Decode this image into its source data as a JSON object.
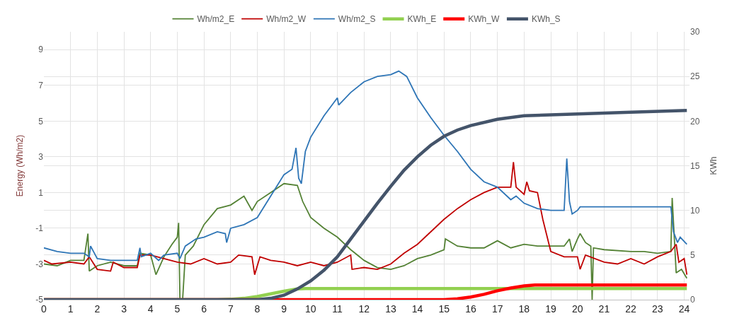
{
  "chart_data": {
    "type": "line",
    "ylabel": "Energy (Wh/m2)",
    "y2label": "KWh",
    "xlim": [
      0,
      24.2
    ],
    "xticks": [
      0,
      1,
      2,
      3,
      4,
      5,
      6,
      7,
      8,
      9,
      10,
      11,
      12,
      13,
      14,
      15,
      16,
      17,
      18,
      19,
      20,
      21,
      22,
      23,
      24
    ],
    "ylim": [
      -5,
      10
    ],
    "yticks": [
      -5,
      -3,
      -1,
      1,
      3,
      5,
      7,
      9
    ],
    "y2lim": [
      0,
      30
    ],
    "y2ticks": [
      0,
      5,
      10,
      15,
      20,
      25,
      30
    ],
    "grid": true,
    "legend": "top",
    "marker": "none",
    "line_style": "solid",
    "series": [
      {
        "name": "Wh/m2_E",
        "color": "#548235",
        "x": [
          0,
          0.5,
          1,
          1.5,
          1.65,
          1.7,
          2,
          2.5,
          3,
          3.5,
          3.6,
          4,
          4.2,
          4.5,
          4.8,
          5,
          5.05,
          5.1,
          5.2,
          5.3,
          5.6,
          6,
          6.5,
          7,
          7.5,
          7.8,
          8,
          8.5,
          9,
          9.5,
          9.7,
          10,
          10.5,
          11,
          11.5,
          12,
          12.5,
          13,
          13.5,
          14,
          14.5,
          15,
          15.05,
          15.5,
          16,
          16.5,
          17,
          17.5,
          18,
          18.5,
          19,
          19.5,
          19.7,
          19.8,
          20,
          20.1,
          20.3,
          20.5,
          20.55,
          20.6,
          21,
          22,
          22.5,
          23,
          23.5,
          23.55,
          23.7,
          23.9,
          24.1
        ],
        "values": [
          -3.0,
          -3.1,
          -2.8,
          -2.8,
          -1.3,
          -3.4,
          -3.1,
          -2.9,
          -3.1,
          -3.1,
          -2.4,
          -2.5,
          -3.6,
          -2.6,
          -1.9,
          -1.5,
          -0.7,
          -5.0,
          -5.0,
          -2.5,
          -2.0,
          -0.8,
          0.1,
          0.3,
          0.8,
          0.0,
          0.5,
          1.0,
          1.5,
          1.4,
          0.5,
          -0.4,
          -1.0,
          -1.5,
          -2.2,
          -2.8,
          -3.2,
          -3.3,
          -3.1,
          -2.7,
          -2.5,
          -2.2,
          -1.6,
          -2.0,
          -2.1,
          -2.1,
          -1.7,
          -2.1,
          -1.9,
          -2.0,
          -2.0,
          -2.0,
          -1.6,
          -2.3,
          -1.6,
          -1.3,
          -1.8,
          -2.0,
          -5.0,
          -2.1,
          -2.2,
          -2.3,
          -2.3,
          -2.4,
          -2.3,
          0.7,
          -3.5,
          -3.3,
          -3.8
        ]
      },
      {
        "name": "Wh/m2_W",
        "color": "#c00000",
        "x": [
          0,
          0.3,
          1,
          1.5,
          1.7,
          2,
          2.5,
          2.6,
          3,
          3.5,
          3.6,
          4,
          4.5,
          5,
          5.5,
          6,
          6.5,
          7,
          7.3,
          7.8,
          7.9,
          8.1,
          8.5,
          9,
          9.5,
          10,
          10.5,
          11,
          11.5,
          11.55,
          12,
          12.5,
          13,
          13.5,
          14,
          14.5,
          15,
          15.5,
          16,
          16.5,
          17,
          17.5,
          17.6,
          17.7,
          18,
          18.1,
          18.2,
          18.5,
          18.7,
          19,
          19.5,
          20,
          20.1,
          20.3,
          21,
          21.5,
          22,
          22.5,
          23,
          23.5,
          23.7,
          23.8,
          24,
          24.1
        ],
        "values": [
          -2.8,
          -3.0,
          -2.9,
          -3.0,
          -2.6,
          -3.3,
          -3.4,
          -2.9,
          -3.2,
          -3.2,
          -2.5,
          -2.5,
          -2.7,
          -2.9,
          -3.0,
          -2.7,
          -3.0,
          -2.9,
          -2.5,
          -2.6,
          -3.6,
          -2.6,
          -2.8,
          -2.9,
          -3.1,
          -2.9,
          -3.1,
          -2.9,
          -2.5,
          -3.3,
          -3.2,
          -3.3,
          -3.0,
          -2.4,
          -1.9,
          -1.2,
          -0.5,
          0.1,
          0.6,
          1.0,
          1.3,
          1.3,
          2.7,
          1.3,
          0.9,
          1.6,
          1.1,
          1.0,
          -0.5,
          -2.3,
          -2.6,
          -2.6,
          -3.3,
          -2.5,
          -2.9,
          -3.0,
          -2.7,
          -3.0,
          -2.6,
          -2.3,
          -1.9,
          -2.9,
          -2.7,
          -3.6
        ]
      },
      {
        "name": "Wh/m2_S",
        "color": "#2e75b6",
        "x": [
          0,
          0.5,
          1,
          1.5,
          1.7,
          1.75,
          2,
          2.5,
          3,
          3.5,
          3.6,
          3.65,
          4,
          4.3,
          4.5,
          5,
          5.1,
          5.3,
          5.7,
          6,
          6.5,
          6.8,
          6.85,
          7,
          7.5,
          8,
          8.5,
          9,
          9.3,
          9.45,
          9.55,
          9.65,
          9.8,
          10,
          10.5,
          11,
          11.05,
          11.5,
          12,
          12.5,
          13,
          13.3,
          13.6,
          14,
          14.5,
          15,
          15.5,
          16,
          16.5,
          17,
          17.5,
          17.7,
          18,
          18.5,
          19,
          19.5,
          19.6,
          19.7,
          19.8,
          20,
          20.1,
          21,
          22,
          23,
          23.5,
          23.6,
          23.75,
          23.85,
          24.1
        ],
        "values": [
          -2.1,
          -2.3,
          -2.4,
          -2.4,
          -2.6,
          -2.0,
          -2.7,
          -2.8,
          -2.8,
          -2.8,
          -2.1,
          -2.6,
          -2.4,
          -2.8,
          -2.5,
          -2.4,
          -2.7,
          -2.0,
          -1.6,
          -1.5,
          -1.2,
          -1.3,
          -1.8,
          -1.0,
          -0.8,
          -0.4,
          0.8,
          2.0,
          2.3,
          3.5,
          1.8,
          1.5,
          3.3,
          4.1,
          5.3,
          6.3,
          5.9,
          6.6,
          7.2,
          7.5,
          7.6,
          7.8,
          7.5,
          6.3,
          5.2,
          4.2,
          3.3,
          2.3,
          1.6,
          1.3,
          0.6,
          0.8,
          0.4,
          0.1,
          0.0,
          0.0,
          2.9,
          0.5,
          -0.2,
          0.0,
          0.2,
          0.2,
          0.2,
          0.2,
          0.2,
          -1.2,
          -1.8,
          -1.5,
          -1.9
        ]
      },
      {
        "name": "KWh_E",
        "color": "#92d050",
        "axis": "y2",
        "x": [
          0,
          6.5,
          7,
          7.5,
          8,
          8.5,
          9,
          9.5,
          9.8,
          24.1
        ],
        "values": [
          0,
          0,
          0.05,
          0.15,
          0.35,
          0.65,
          0.95,
          1.2,
          1.25,
          1.25
        ]
      },
      {
        "name": "KWh_W",
        "color": "#ff0000",
        "axis": "y2",
        "x": [
          0,
          15,
          15.5,
          16,
          16.5,
          17,
          17.5,
          18,
          18.4,
          24.1
        ],
        "values": [
          0,
          0,
          0.1,
          0.3,
          0.6,
          1.0,
          1.3,
          1.55,
          1.65,
          1.65
        ]
      },
      {
        "name": "KWh_S",
        "color": "#44546a",
        "axis": "y2",
        "x": [
          0,
          8,
          8.5,
          9,
          9.5,
          10,
          10.5,
          11,
          11.5,
          12,
          12.5,
          13,
          13.5,
          14,
          14.5,
          15,
          15.5,
          16,
          17,
          18,
          20,
          22,
          24.1
        ],
        "values": [
          0,
          0,
          0.15,
          0.5,
          1.2,
          2.1,
          3.3,
          4.8,
          6.8,
          8.8,
          10.8,
          12.7,
          14.5,
          16.0,
          17.3,
          18.3,
          19.0,
          19.5,
          20.2,
          20.6,
          20.8,
          21.0,
          21.2
        ]
      }
    ]
  }
}
